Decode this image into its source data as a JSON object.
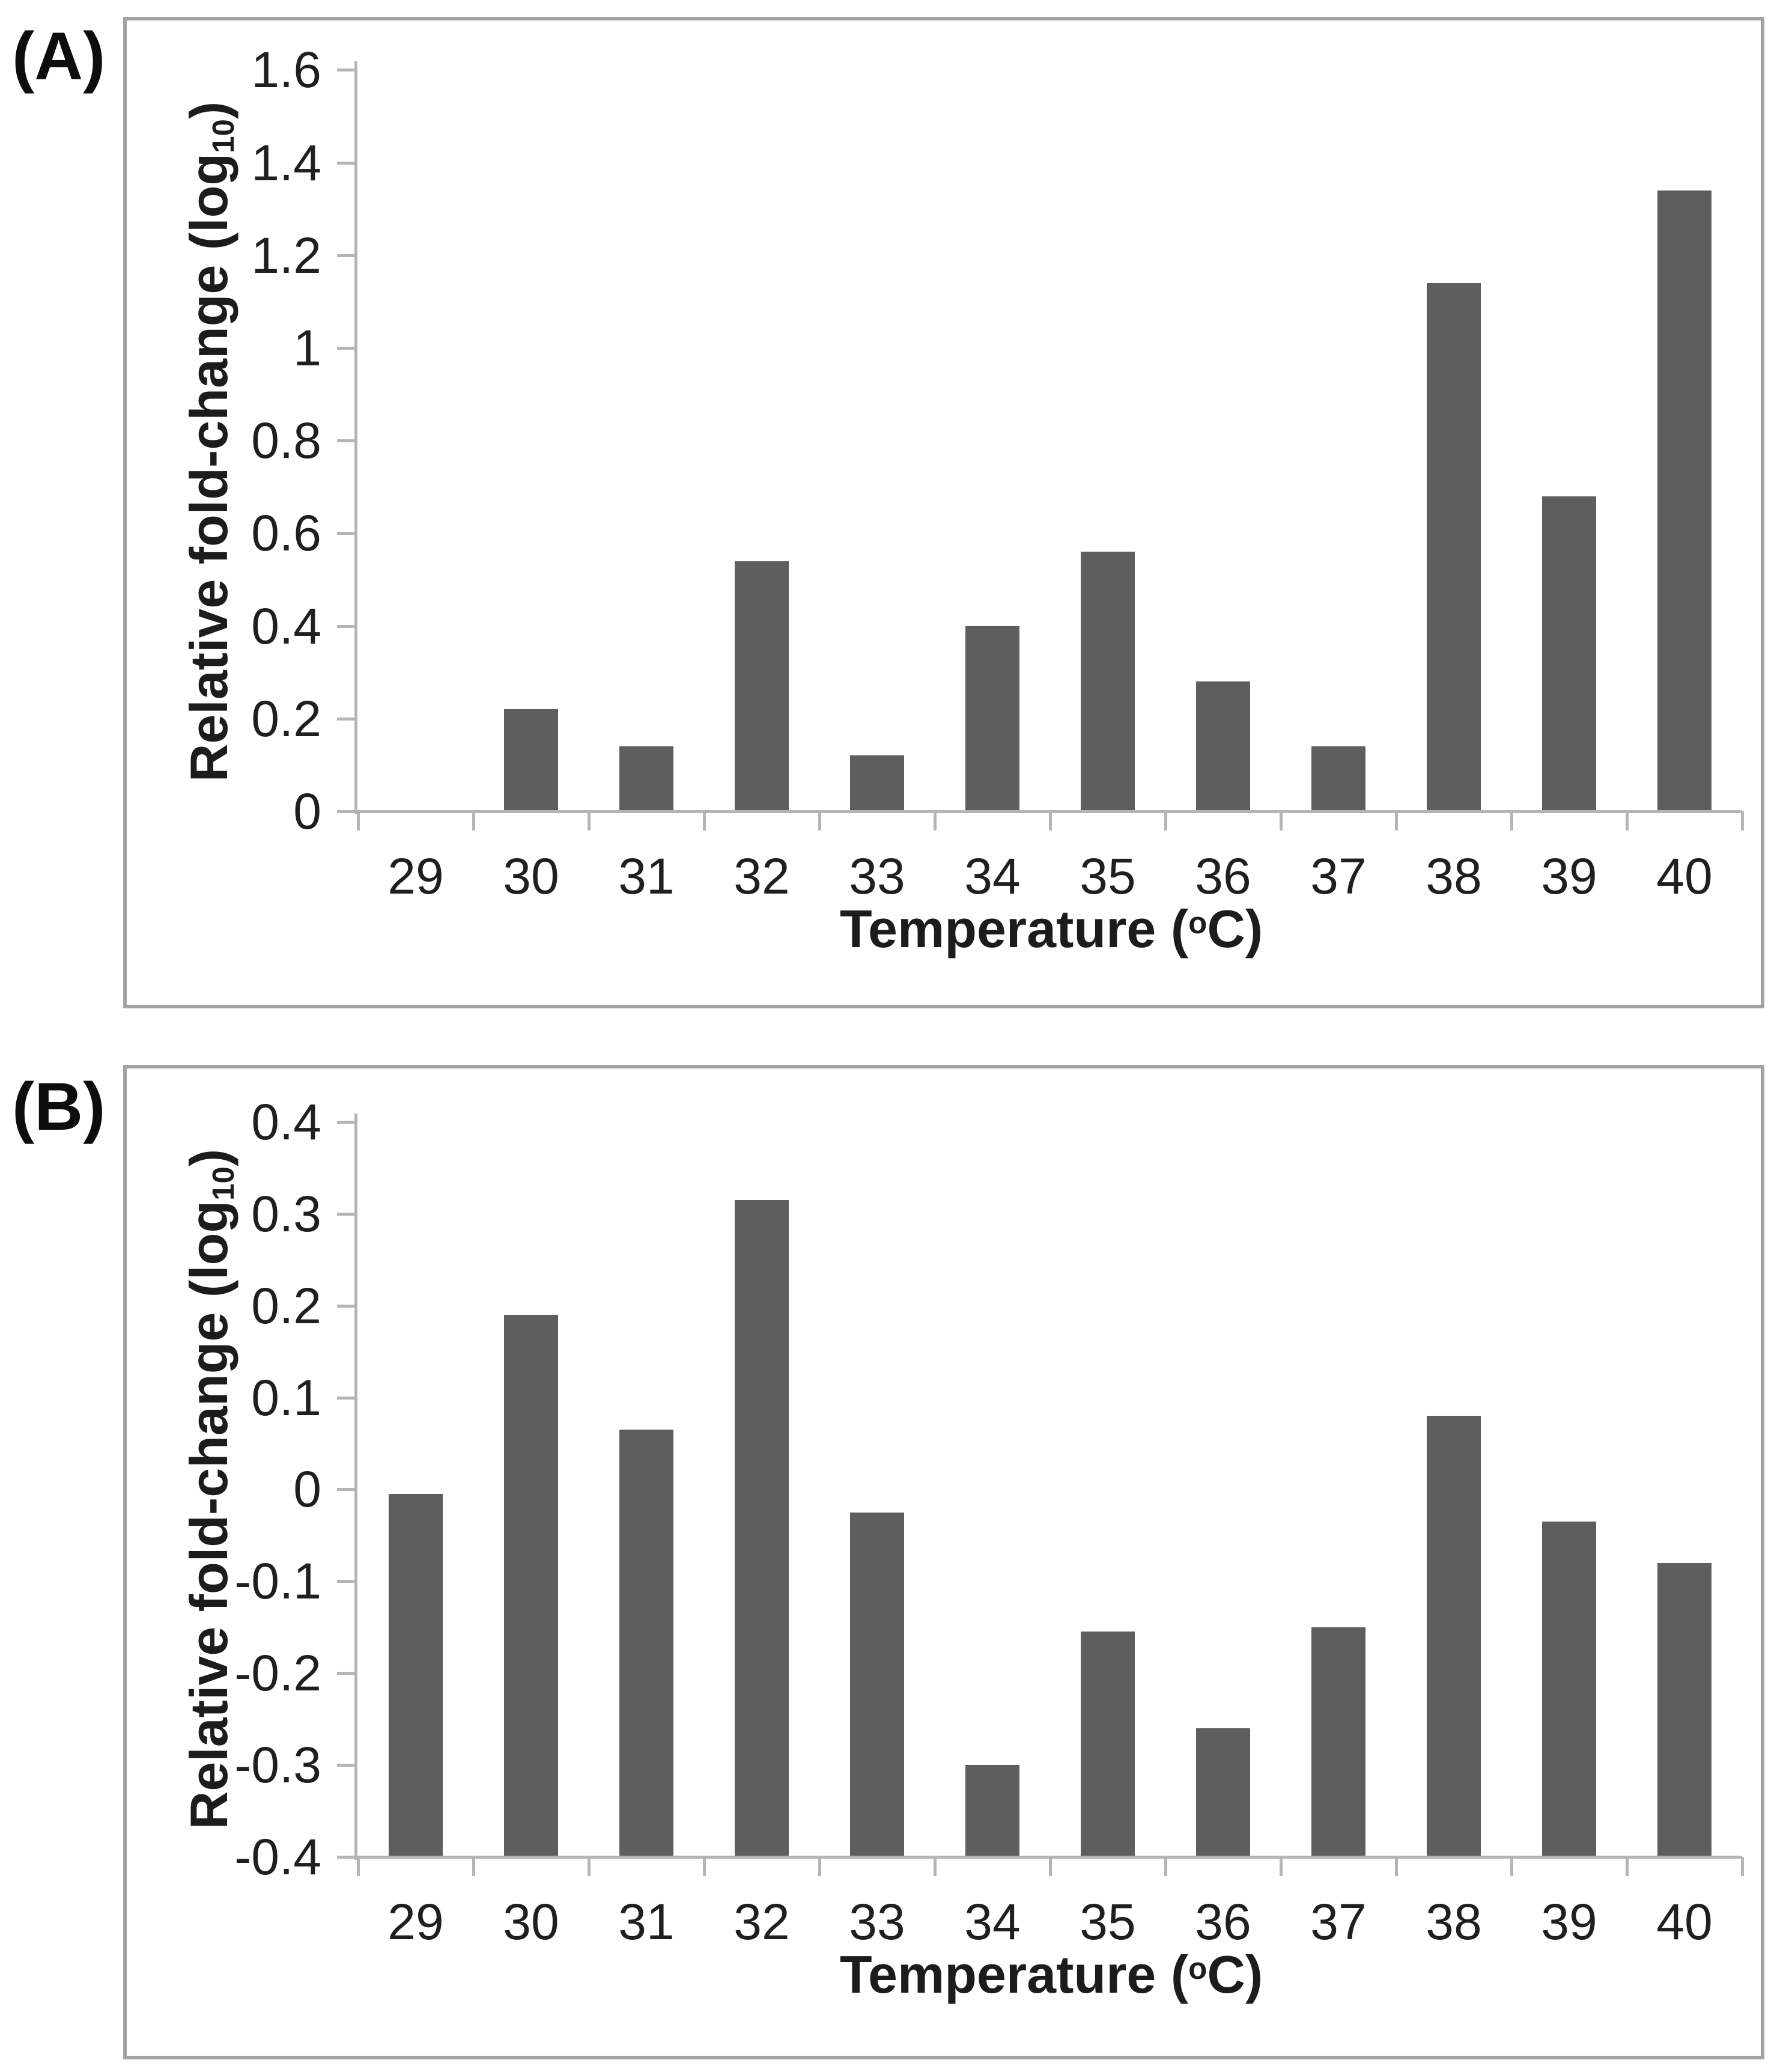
{
  "figure": {
    "background": "#ffffff",
    "panels": [
      {
        "label": "(A)"
      },
      {
        "label": "(B)"
      }
    ]
  },
  "colors": {
    "bar_fill": "#5e5e5e",
    "axis_line": "#b5b5b5",
    "text": "#1f1f1f",
    "panel_border": "#a2a2a2"
  },
  "chart_data": [
    {
      "type": "bar",
      "panel": "A",
      "title": "",
      "categories": [
        "29",
        "30",
        "31",
        "32",
        "33",
        "34",
        "35",
        "36",
        "37",
        "38",
        "39",
        "40"
      ],
      "values": [
        0,
        0.22,
        0.14,
        0.54,
        0.12,
        0.4,
        0.56,
        0.28,
        0.14,
        1.14,
        0.68,
        1.34
      ],
      "xlabel": "Temperature (oC)",
      "xlabel_prefix": "Temperature (",
      "xlabel_sup": "o",
      "xlabel_suffix": "C)",
      "ylabel": "Relative fold-change (log10)",
      "ylabel_prefix": "Relative  fold-change (log",
      "ylabel_sub": "10",
      "ylabel_suffix": ")",
      "ylim": [
        0,
        1.6
      ],
      "ytick_step": 0.2,
      "y_tick_labels": [
        "0",
        "0.2",
        "0.4",
        "0.6",
        "0.8",
        "1",
        "1.2",
        "1.4",
        "1.6"
      ],
      "grid": false,
      "legend": null,
      "bar_color": "#5e5e5e"
    },
    {
      "type": "bar",
      "panel": "B",
      "title": "",
      "categories": [
        "29",
        "30",
        "31",
        "32",
        "33",
        "34",
        "35",
        "36",
        "37",
        "38",
        "39",
        "40"
      ],
      "values": [
        -0.005,
        0.19,
        0.065,
        0.315,
        -0.025,
        -0.3,
        -0.155,
        -0.26,
        -0.15,
        0.08,
        -0.035,
        -0.08
      ],
      "xlabel": "Temperature (oC)",
      "xlabel_prefix": "Temperature (",
      "xlabel_sup": "o",
      "xlabel_suffix": "C)",
      "ylabel": "Relative fold-change (log10)",
      "ylabel_prefix": "Relative  fold-change (log",
      "ylabel_sub": "10",
      "ylabel_suffix": ")",
      "ylim": [
        -0.4,
        0.4
      ],
      "ytick_step": 0.1,
      "y_tick_labels": [
        "-0.4",
        "-0.3",
        "-0.2",
        "-0.1",
        "0",
        "0.1",
        "0.2",
        "0.3",
        "0.4"
      ],
      "grid": false,
      "legend": null,
      "bar_color": "#5e5e5e"
    }
  ]
}
